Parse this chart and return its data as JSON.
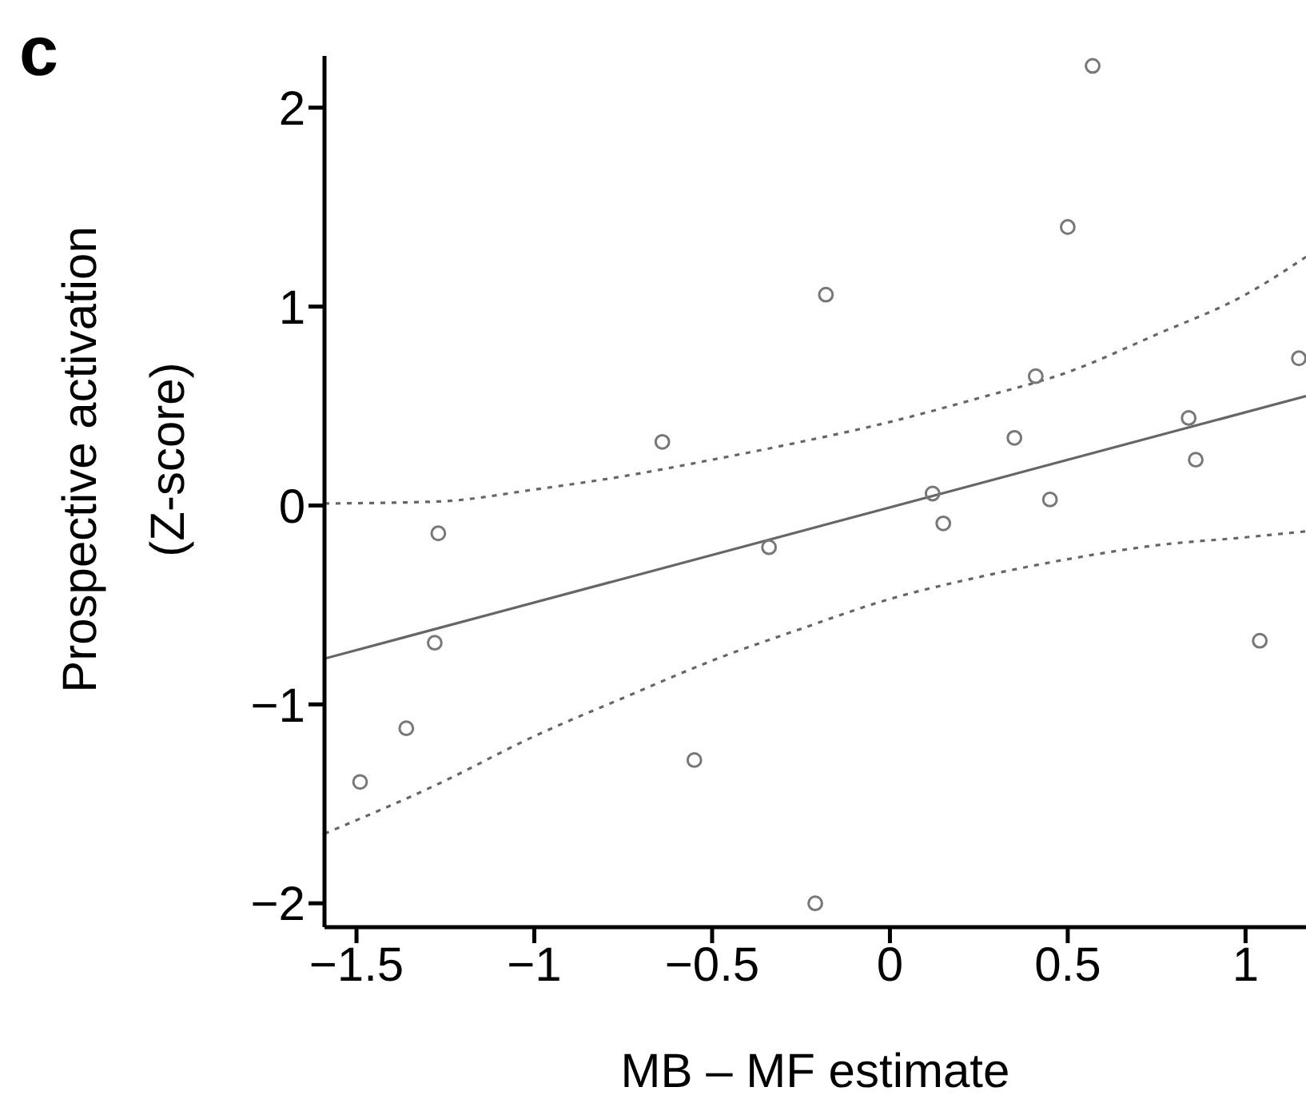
{
  "chart_data": {
    "type": "scatter",
    "title": "c",
    "xlabel": "MB – MF estimate",
    "ylabel": "Prospective activation\n(Z-score)",
    "xlim": [
      -1.59,
      1.17
    ],
    "xticks": [
      -1.5,
      -1,
      -0.5,
      0,
      0.5,
      1
    ],
    "ylim": [
      -2.12,
      2.26
    ],
    "yticks": [
      -2,
      -1,
      0,
      1,
      2
    ],
    "grid": false,
    "legend": false,
    "marker": "circle",
    "series": [
      {
        "color": "#777777",
        "x": [
          -1.49,
          -1.36,
          -1.28,
          -1.27,
          -0.64,
          -0.55,
          -0.34,
          -0.21,
          -0.18,
          0.12,
          0.15,
          0.35,
          0.41,
          0.45,
          0.5,
          0.57,
          0.84,
          0.86,
          1.04,
          1.15
        ],
        "values": [
          -1.39,
          -1.12,
          -0.69,
          -0.14,
          0.32,
          -1.28,
          -0.21,
          -2.0,
          1.06,
          0.06,
          -0.09,
          0.34,
          0.65,
          0.03,
          1.4,
          2.21,
          0.44,
          0.23,
          -0.68,
          0.74
        ]
      },
      {
        "type": "line",
        "marker": "none",
        "line_style": "solid",
        "color": "#666666",
        "x": [
          -1.59,
          1.17
        ],
        "values": [
          -0.77,
          0.55
        ]
      },
      {
        "type": "line",
        "marker": "none",
        "line_style": "dotted",
        "color": "#666666",
        "x": [
          -1.59,
          -1.27,
          -1,
          -0.74,
          -0.5,
          -0.25,
          0,
          0.25,
          0.5,
          0.75,
          1,
          1.17
        ],
        "values": [
          0.01,
          0.02,
          0.08,
          0.15,
          0.23,
          0.32,
          0.42,
          0.54,
          0.67,
          0.86,
          1.06,
          1.25
        ]
      },
      {
        "type": "line",
        "marker": "none",
        "line_style": "dotted",
        "color": "#666666",
        "x": [
          -1.59,
          -1.27,
          -1,
          -0.74,
          -0.5,
          -0.25,
          0,
          0.25,
          0.5,
          0.75,
          1,
          1.17
        ],
        "values": [
          -1.65,
          -1.4,
          -1.16,
          -0.96,
          -0.78,
          -0.62,
          -0.47,
          -0.36,
          -0.27,
          -0.2,
          -0.16,
          -0.13
        ]
      }
    ]
  }
}
